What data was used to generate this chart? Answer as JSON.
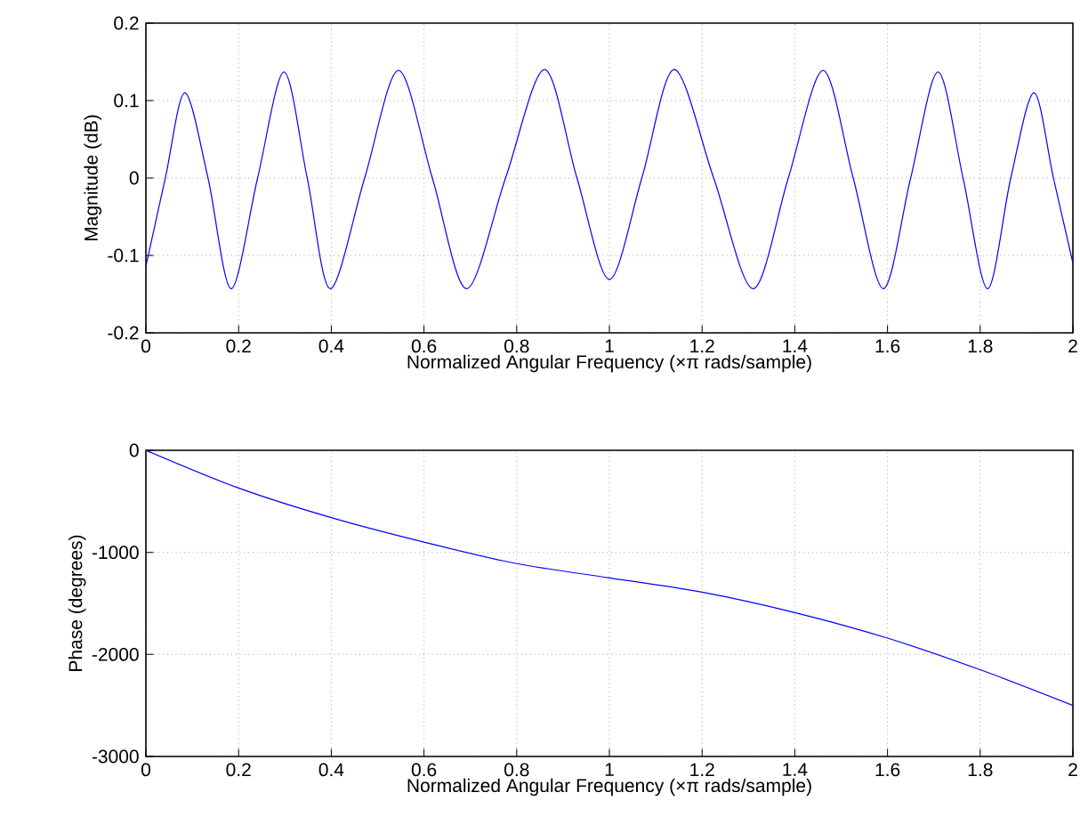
{
  "chart_data": [
    {
      "type": "line",
      "xlabel": "Normalized Angular Frequency  (×π rads/sample)",
      "ylabel": "Magnitude (dB)",
      "color": "#0000ff",
      "grid": true,
      "xlim": [
        0,
        2
      ],
      "ylim": [
        -0.2,
        0.2
      ],
      "xticks": [
        0,
        0.2,
        0.4,
        0.6,
        0.8,
        1,
        1.2,
        1.4,
        1.6,
        1.8,
        2
      ],
      "yticks": [
        -0.2,
        -0.1,
        0,
        0.1,
        0.2
      ],
      "x": [
        0,
        0.042,
        0.084,
        0.134,
        0.184,
        0.241,
        0.298,
        0.348,
        0.398,
        0.472,
        0.545,
        0.618,
        0.692,
        0.776,
        0.86,
        0.93,
        1.0,
        1.07,
        1.14,
        1.225,
        1.31,
        1.386,
        1.461,
        1.526,
        1.591,
        1.65,
        1.709,
        1.763,
        1.816,
        1.866,
        1.916,
        1.958,
        2.0
      ],
      "values": [
        -0.114,
        0,
        0.11,
        0,
        -0.143,
        0,
        0.137,
        0,
        -0.143,
        0,
        0.139,
        0,
        -0.143,
        0,
        0.14,
        0,
        -0.131,
        0,
        0.14,
        0,
        -0.143,
        0,
        0.139,
        0,
        -0.143,
        0,
        0.137,
        0,
        -0.143,
        0,
        0.11,
        0,
        -0.11
      ]
    },
    {
      "type": "line",
      "xlabel": "Normalized Angular Frequency  (×π rads/sample)",
      "ylabel": "Phase (degrees)",
      "color": "#0000ff",
      "grid": true,
      "xlim": [
        0,
        2
      ],
      "ylim": [
        -3000,
        0
      ],
      "xticks": [
        0,
        0.2,
        0.4,
        0.6,
        0.8,
        1,
        1.2,
        1.4,
        1.6,
        1.8,
        2
      ],
      "yticks": [
        -3000,
        -2000,
        -1000,
        0
      ],
      "x": [
        0,
        0.2,
        0.4,
        0.6,
        0.8,
        1.0,
        1.2,
        1.4,
        1.6,
        1.8,
        2.0
      ],
      "values": [
        0,
        -370,
        -660,
        -900,
        -1110,
        -1250,
        -1390,
        -1590,
        -1840,
        -2150,
        -2500
      ]
    }
  ]
}
